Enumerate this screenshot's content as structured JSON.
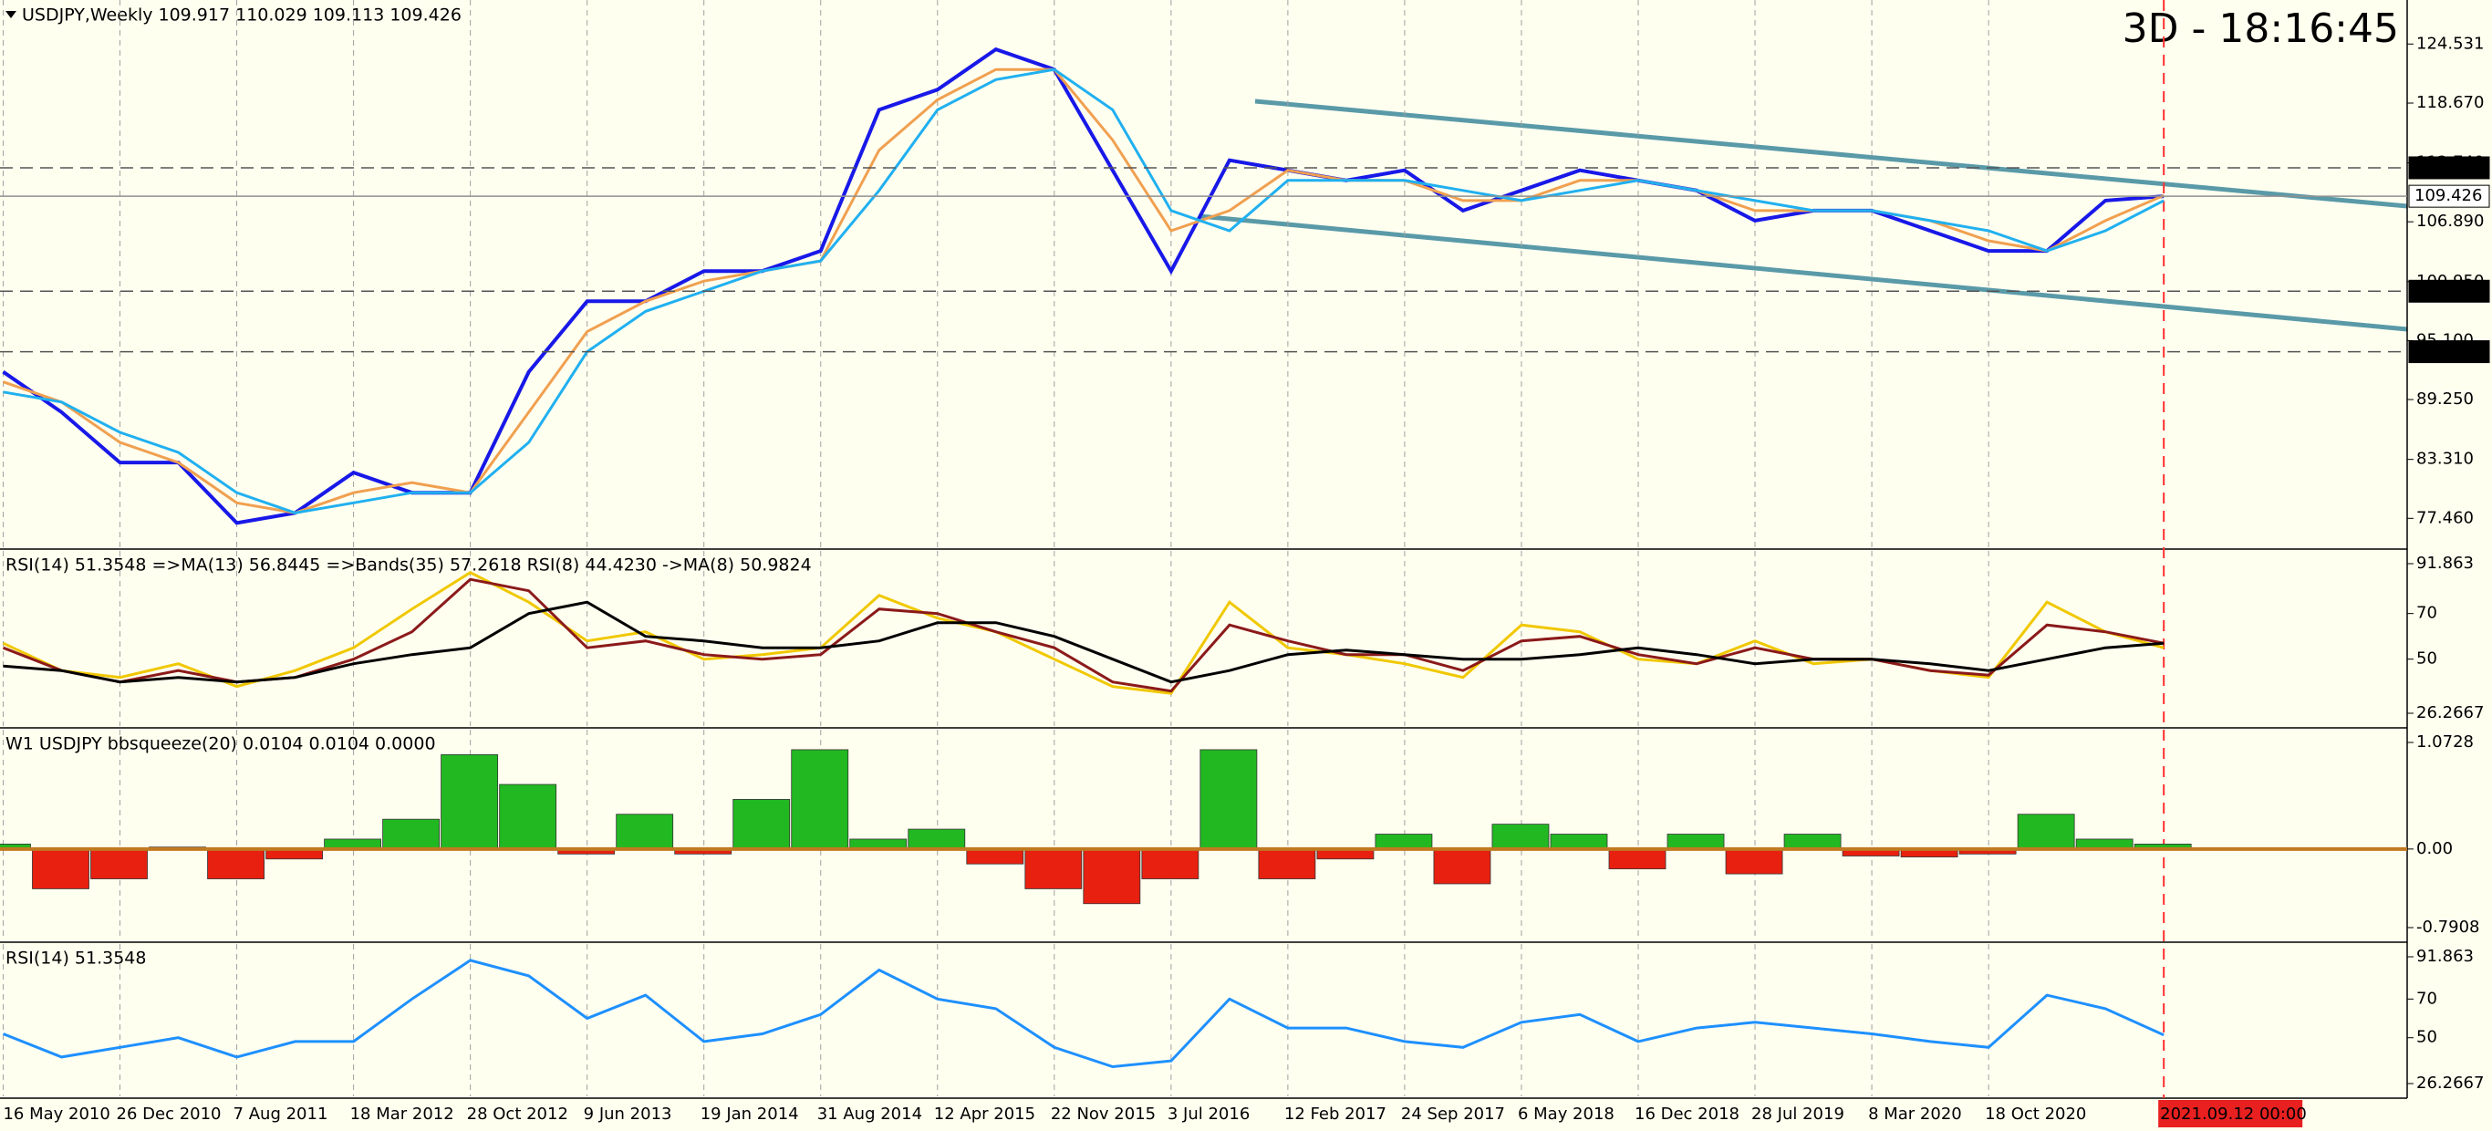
{
  "chart_data": [
    {
      "type": "line",
      "title": "USDJPY,Weekly  109.917 110.029 109.113 109.426",
      "timer": "3D - 18:16:45",
      "categories": [
        "16 May 2010",
        null,
        "26 Dec 2010",
        null,
        "7 Aug 2011",
        null,
        "18 Mar 2012",
        null,
        "28 Oct 2012",
        null,
        "9 Jun 2013",
        null,
        "19 Jan 2014",
        null,
        "31 Aug 2014",
        null,
        "12 Apr 2015",
        null,
        "22 Nov 2015",
        null,
        "3 Jul 2016",
        null,
        "12 Feb 2017",
        null,
        "24 Sep 2017",
        null,
        "6 May 2018",
        null,
        "16 Dec 2018",
        null,
        "28 Jul 2019",
        null,
        "8 Mar 2020",
        null,
        "18 Oct 2020",
        null,
        null,
        "2021.09.12 00:00"
      ],
      "series": [
        {
          "color": "#1818e8",
          "values": [
            92,
            88,
            83,
            83,
            77,
            78,
            82,
            80,
            80,
            92,
            99,
            99,
            102,
            102,
            104,
            118,
            120,
            124,
            122,
            112,
            102,
            113,
            112,
            111,
            112,
            108,
            110,
            112,
            111,
            110,
            107,
            108,
            108,
            106,
            104,
            104,
            109,
            109.426
          ]
        },
        {
          "color": "#f0a050",
          "values": [
            91,
            89,
            85,
            83,
            79,
            78,
            80,
            81,
            80,
            88,
            96,
            99,
            101,
            102,
            103,
            114,
            119,
            122,
            122,
            115,
            106,
            108,
            112,
            111,
            111,
            109,
            109,
            111,
            111,
            110,
            108,
            108,
            108,
            107,
            105,
            104,
            107,
            109.5
          ]
        },
        {
          "color": "#20b0f0",
          "values": [
            90,
            89,
            86,
            84,
            80,
            78,
            79,
            80,
            80,
            85,
            94,
            98,
            100,
            102,
            103,
            110,
            118,
            121,
            122,
            118,
            108,
            106,
            111,
            111,
            111,
            110,
            109,
            110,
            111,
            110,
            109,
            108,
            108,
            107,
            106,
            104,
            106,
            109
          ]
        }
      ],
      "ylim": [
        74.5,
        128.9
      ],
      "yticks": [
        124.531,
        {
          "value": 118.67,
          "label": "118.670"
        },
        {
          "value": 112.74,
          "label": "112.740"
        },
        {
          "value": 106.89,
          "label": "106.890"
        },
        {
          "value": 100.95,
          "label": "100.950"
        },
        {
          "value": 95.1,
          "label": "95.100"
        },
        {
          "value": 89.25,
          "label": "89.250"
        },
        {
          "value": 83.31,
          "label": "83.310"
        },
        {
          "value": 77.46,
          "label": "77.460"
        }
      ],
      "levels": [
        112.247,
        109.426,
        {
          "value": 100,
          "label": "100.000"
        },
        {
          "value": 94,
          "label": "94.000"
        }
      ]
    },
    {
      "type": "line",
      "title": "RSI(14) 51.3548  =>MA(13) 56.8445  =>Bands(35) 57.2618  RSI(8) 44.4230  ->MA(8) 50.9824",
      "series": [
        {
          "color": "#f0c800",
          "values": [
            57,
            45,
            42,
            48,
            38,
            45,
            55,
            72,
            88,
            75,
            58,
            62,
            50,
            52,
            55,
            78,
            68,
            62,
            50,
            38,
            35,
            75,
            55,
            52,
            48,
            42,
            65,
            62,
            50,
            48,
            58,
            48,
            50,
            45,
            42,
            75,
            62,
            55
          ]
        },
        {
          "color": "#8b1a1a",
          "values": [
            55,
            45,
            40,
            45,
            40,
            42,
            50,
            62,
            85,
            80,
            55,
            58,
            52,
            50,
            52,
            72,
            70,
            62,
            55,
            40,
            36,
            65,
            58,
            52,
            52,
            45,
            58,
            60,
            52,
            48,
            55,
            50,
            50,
            45,
            43,
            65,
            62,
            57
          ]
        },
        {
          "color": "#000000",
          "values": [
            47,
            45,
            40,
            42,
            40,
            42,
            48,
            52,
            55,
            70,
            75,
            60,
            58,
            55,
            55,
            58,
            66,
            66,
            60,
            50,
            40,
            45,
            52,
            54,
            52,
            50,
            50,
            52,
            55,
            52,
            48,
            50,
            50,
            48,
            45,
            50,
            55,
            57
          ]
        }
      ],
      "ylim": [
        26.2667,
        91.863
      ],
      "yticks": [
        91.863,
        70,
        50,
        26.2667
      ]
    },
    {
      "type": "bar",
      "title": "W1 USDJPY bbsqueeze(20) 0.0104 0.0104 0.0000",
      "values": [
        0.05,
        -0.4,
        -0.3,
        0.02,
        -0.3,
        -0.1,
        0.1,
        0.3,
        0.95,
        0.65,
        -0.05,
        0.35,
        -0.05,
        0.5,
        1.0,
        0.1,
        0.2,
        -0.15,
        -0.4,
        -0.55,
        -0.3,
        1.0,
        -0.3,
        -0.1,
        0.15,
        -0.35,
        0.25,
        0.15,
        -0.2,
        0.15,
        -0.25,
        0.15,
        -0.07,
        -0.08,
        -0.05,
        0.35,
        0.1,
        0.05
      ],
      "colors": [
        "#22b822",
        "#e82010"
      ],
      "ylim": [
        -0.7908,
        1.0728
      ],
      "yticks": [
        1.0728,
        {
          "value": 0,
          "label": "0.00"
        },
        -0.7908
      ]
    },
    {
      "type": "line",
      "title": "RSI(14) 51.3548",
      "series": [
        {
          "color": "#1e90ff",
          "values": [
            52,
            40,
            45,
            50,
            40,
            48,
            48,
            70,
            90,
            82,
            60,
            72,
            48,
            52,
            62,
            85,
            70,
            65,
            45,
            35,
            38,
            70,
            55,
            55,
            48,
            45,
            58,
            62,
            48,
            55,
            58,
            55,
            52,
            48,
            45,
            72,
            65,
            51.3548
          ]
        }
      ],
      "ylim": [
        26.2667,
        91.863
      ],
      "yticks": [
        91.863,
        70,
        50,
        26.2667
      ]
    }
  ]
}
